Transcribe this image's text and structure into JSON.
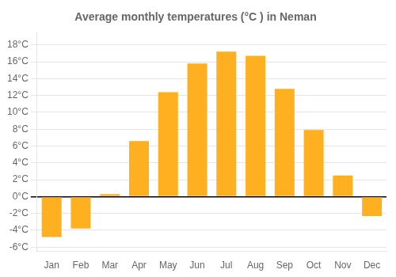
{
  "chart_data": {
    "type": "bar",
    "title": "Average monthly temperatures (°C ) in Neman",
    "categories": [
      "Jan",
      "Feb",
      "Mar",
      "Apr",
      "May",
      "Jun",
      "Jul",
      "Aug",
      "Sep",
      "Oct",
      "Nov",
      "Dec"
    ],
    "values": [
      -4.8,
      -3.8,
      0.3,
      6.6,
      12.4,
      15.8,
      17.2,
      16.7,
      12.8,
      7.9,
      2.5,
      -2.3
    ],
    "color": "#FFB020",
    "ylim": [
      -6.5,
      19.5
    ],
    "yticks": [
      {
        "value": -6,
        "label": "-6°C"
      },
      {
        "value": -4,
        "label": "-4°C"
      },
      {
        "value": -2,
        "label": "-2°C"
      },
      {
        "value": 0,
        "label": "0°C"
      },
      {
        "value": 2,
        "label": "2°C"
      },
      {
        "value": 4,
        "label": "4°C"
      },
      {
        "value": 6,
        "label": "6°C"
      },
      {
        "value": 8,
        "label": "8°C"
      },
      {
        "value": 10,
        "label": "10°C"
      },
      {
        "value": 12,
        "label": "12°C"
      },
      {
        "value": 14,
        "label": "14°C"
      },
      {
        "value": 16,
        "label": "16°C"
      },
      {
        "value": 18,
        "label": "18°C"
      }
    ],
    "grid": true
  }
}
